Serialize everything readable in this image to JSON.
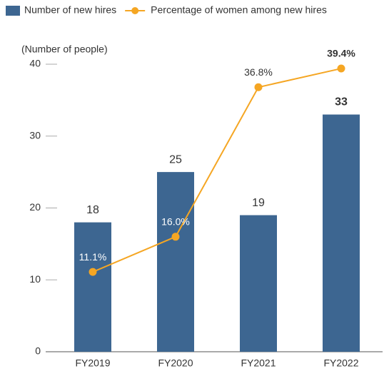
{
  "chart_data": {
    "type": "bar",
    "ylabel": "(Number of people)",
    "categories": [
      "FY2019",
      "FY2020",
      "FY2021",
      "FY2022"
    ],
    "series": [
      {
        "name": "Number of new hires",
        "type": "bar",
        "color": "#3d6691",
        "values": [
          18,
          25,
          19,
          33
        ]
      },
      {
        "name": "Percentage of women among new hires",
        "type": "line",
        "axis": "y2",
        "color": "#f5a623",
        "values": [
          11.1,
          16.0,
          36.8,
          39.4
        ],
        "value_labels": [
          "11.1%",
          "16.0%",
          "36.8%",
          "39.4%"
        ]
      }
    ],
    "ylim": [
      0,
      40
    ],
    "yticks": [
      0,
      10,
      20,
      30,
      40
    ],
    "y2lim": [
      0,
      40
    ]
  }
}
